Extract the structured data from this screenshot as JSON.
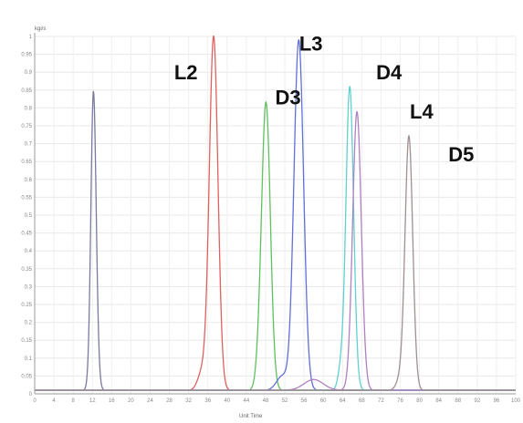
{
  "chart_data": {
    "type": "line",
    "title": "",
    "y_unit_label": "kgi/s",
    "x_unit_label": "Unit Time",
    "xlim": [
      0,
      100
    ],
    "ylim": [
      0,
      1
    ],
    "y_tick_labels": [
      "0",
      "0.05",
      "0.1",
      "0.15",
      "0.2",
      "0.25",
      "0.3",
      "0.35",
      "0.4",
      "0.45",
      "0.5",
      "0.55",
      "0.6",
      "0.65",
      "0.7",
      "0.75",
      "0.8",
      "0.85",
      "0.9",
      "0.95",
      "1"
    ],
    "x_tick_labels": [
      "0",
      "4",
      "8",
      "12",
      "16",
      "20",
      "24",
      "28",
      "32",
      "36",
      "40",
      "44",
      "48",
      "52",
      "56",
      "60",
      "64",
      "68",
      "72",
      "76",
      "80",
      "84",
      "88",
      "92",
      "96",
      "100"
    ],
    "grid": true,
    "baseline": 0.01,
    "peak_labels": [
      {
        "text": "L2",
        "x": 29,
        "y": 0.88
      },
      {
        "text": "D3",
        "x": 50,
        "y": 0.81
      },
      {
        "text": "L3",
        "x": 55,
        "y": 0.96
      },
      {
        "text": "D4",
        "x": 71,
        "y": 0.88
      },
      {
        "text": "L4",
        "x": 78,
        "y": 0.77
      },
      {
        "text": "D5",
        "x": 86,
        "y": 0.65
      }
    ],
    "series": [
      {
        "color": "#7a7aa0",
        "peaks": [
          {
            "x": 12.3,
            "height": 0.49,
            "width": 0.6
          },
          {
            "x": 12.2,
            "height": 0.3,
            "width": 0.5
          },
          {
            "x": 12.0,
            "height": 0.06,
            "width": 0.4
          }
        ]
      },
      {
        "color": "#e06060",
        "peaks": [
          {
            "x": 37.2,
            "height": 0.99,
            "width": 0.9
          },
          {
            "x": 34.8,
            "height": 0.05,
            "width": 0.9
          }
        ]
      },
      {
        "color": "#60c060",
        "peaks": [
          {
            "x": 48.1,
            "height": 0.8,
            "width": 0.9
          },
          {
            "x": 46.7,
            "height": 0.05,
            "width": 0.7
          }
        ]
      },
      {
        "color": "#6070d8",
        "peaks": [
          {
            "x": 54.9,
            "height": 0.98,
            "width": 1.0
          },
          {
            "x": 51.5,
            "height": 0.04,
            "width": 1.2
          }
        ]
      },
      {
        "color": "#60d0d0",
        "peaks": [
          {
            "x": 65.5,
            "height": 0.85,
            "width": 0.8
          },
          {
            "x": 63.6,
            "height": 0.05,
            "width": 0.6
          }
        ]
      },
      {
        "color": "#b080c0",
        "peaks": [
          {
            "x": 67.0,
            "height": 0.78,
            "width": 0.9
          },
          {
            "x": 58.0,
            "height": 0.03,
            "width": 2.0
          }
        ]
      },
      {
        "color": "#a09090",
        "peaks": [
          {
            "x": 77.8,
            "height": 0.71,
            "width": 0.8
          },
          {
            "x": 76.0,
            "height": 0.03,
            "width": 0.8
          }
        ]
      }
    ]
  }
}
